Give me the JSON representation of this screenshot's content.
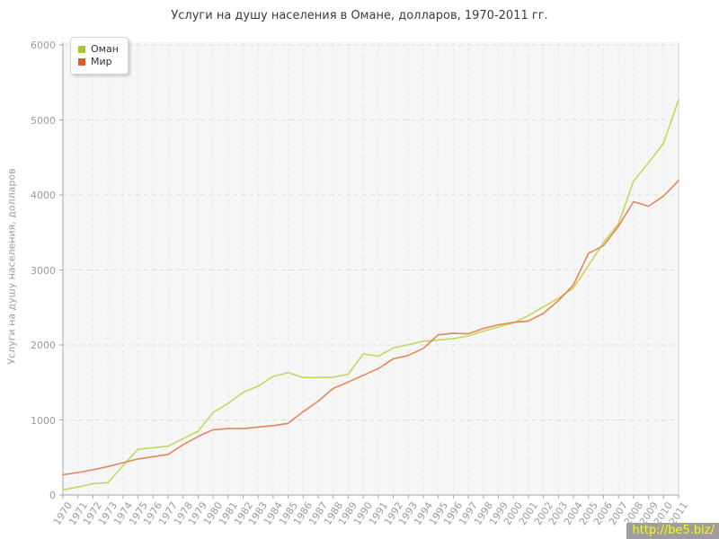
{
  "chart": {
    "title": "Услуги на душу населения в Омане, долларов, 1970-2011 гг.",
    "watermark": "http://be5.biz/"
  },
  "chart_data": {
    "type": "line",
    "title": "Услуги на душу населения в Омане, долларов, 1970-2011 гг.",
    "xlabel": "",
    "ylabel": "Услуги на душу населения, долларов",
    "x": [
      1970,
      1971,
      1972,
      1973,
      1974,
      1975,
      1976,
      1977,
      1978,
      1979,
      1980,
      1981,
      1982,
      1983,
      1984,
      1985,
      1986,
      1987,
      1988,
      1989,
      1990,
      1991,
      1992,
      1993,
      1994,
      1995,
      1996,
      1997,
      1998,
      1999,
      2000,
      2001,
      2002,
      2003,
      2004,
      2005,
      2006,
      2007,
      2008,
      2009,
      2010,
      2011
    ],
    "ylim": [
      0,
      6000
    ],
    "yticks": [
      0,
      1000,
      2000,
      3000,
      4000,
      5000,
      6000
    ],
    "grid": true,
    "legend_position": "top-left",
    "series": [
      {
        "name": "Оман",
        "line_color": "#c3d75f",
        "swatch_color": "#a9c823",
        "values": [
          70,
          105,
          150,
          165,
          390,
          610,
          630,
          650,
          750,
          850,
          1100,
          1220,
          1370,
          1450,
          1580,
          1630,
          1565,
          1565,
          1570,
          1610,
          1880,
          1850,
          1960,
          2005,
          2050,
          2065,
          2085,
          2120,
          2185,
          2240,
          2295,
          2390,
          2510,
          2620,
          2760,
          3060,
          3365,
          3615,
          4185,
          4430,
          4690,
          5270
        ]
      },
      {
        "name": "Мир",
        "line_color": "#e6865b",
        "swatch_color": "#dd5e2b",
        "values": [
          270,
          300,
          335,
          380,
          430,
          480,
          510,
          540,
          670,
          780,
          870,
          885,
          885,
          905,
          925,
          955,
          1110,
          1250,
          1420,
          1505,
          1595,
          1685,
          1815,
          1860,
          1955,
          2135,
          2155,
          2150,
          2220,
          2270,
          2300,
          2320,
          2420,
          2590,
          2800,
          3220,
          3325,
          3585,
          3910,
          3850,
          3985,
          4190
        ]
      }
    ],
    "panel_bg": "#f6f6f6",
    "v_grid_color": "#e4e4e4",
    "h_grid_color": "#dcdcdc",
    "spine_color": "#a6a6a6",
    "right_spine_color": "#d8d8d8",
    "tick_color": "#a6a6a6"
  }
}
